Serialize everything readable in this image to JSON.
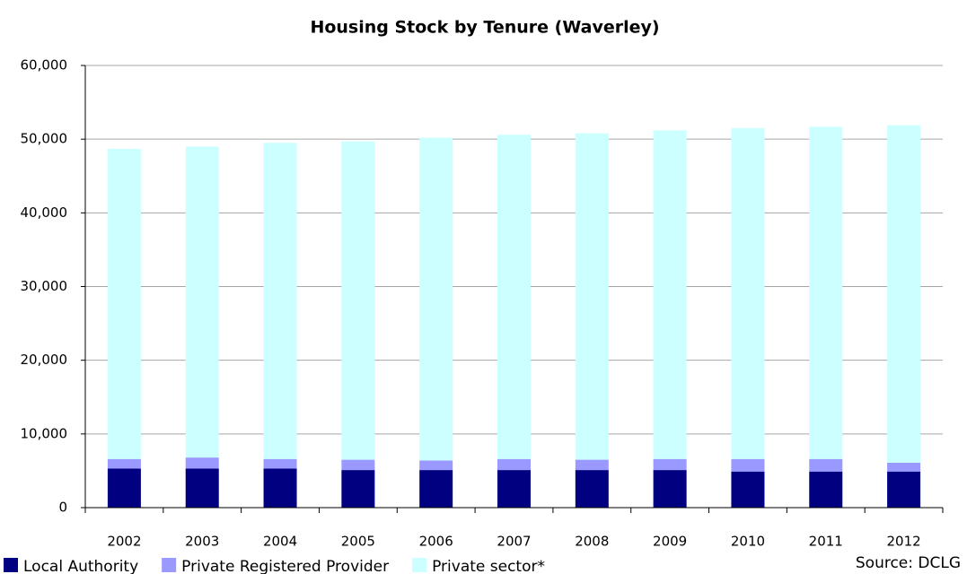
{
  "chart_data": {
    "type": "stacked_bar",
    "title": "Housing Stock by Tenure (Waverley)",
    "source": "Source: DCLG",
    "categories": [
      "2002",
      "2003",
      "2004",
      "2005",
      "2006",
      "2007",
      "2008",
      "2009",
      "2010",
      "2011",
      "2012"
    ],
    "series": [
      {
        "name": "Local Authority",
        "color": "#000080",
        "values": [
          5300,
          5300,
          5300,
          5100,
          5100,
          5100,
          5100,
          5100,
          4900,
          4900,
          4900
        ]
      },
      {
        "name": "Private Registered Provider",
        "color": "#9999ff",
        "values": [
          1300,
          1500,
          1300,
          1400,
          1300,
          1500,
          1400,
          1500,
          1700,
          1700,
          1200
        ]
      },
      {
        "name": "Private sector*",
        "color": "#ccffff",
        "values": [
          42100,
          42200,
          42900,
          43200,
          43800,
          44000,
          44300,
          44600,
          44900,
          45100,
          45800
        ]
      }
    ],
    "ylim": [
      0,
      60000
    ],
    "yticks": [
      0,
      {
        "value": 10000,
        "label": "10,000"
      },
      {
        "value": 20000,
        "label": "20,000"
      },
      {
        "value": 30000,
        "label": "30,000"
      },
      {
        "value": 40000,
        "label": "40,000"
      },
      {
        "value": 50000,
        "label": "50,000"
      },
      {
        "value": 60000,
        "label": "60,000"
      }
    ],
    "grid": true,
    "legend": "bottom-left"
  }
}
